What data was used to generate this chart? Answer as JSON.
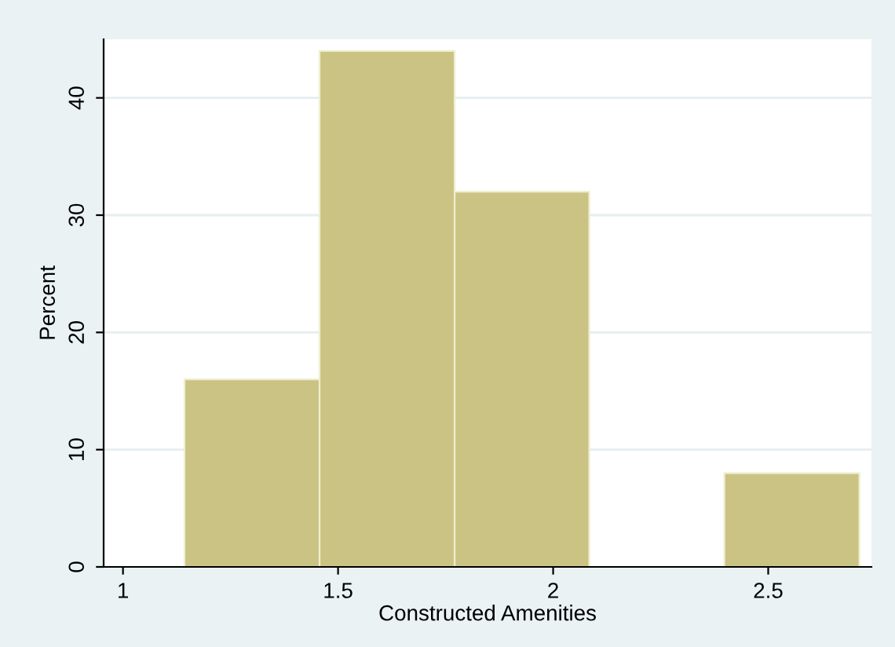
{
  "chart_data": {
    "type": "histogram",
    "xlabel": "Constructed Amenities",
    "ylabel": "Percent",
    "bins": [
      1.143,
      1.457,
      1.771,
      2.084,
      2.398,
      2.712
    ],
    "values": [
      16,
      44,
      32,
      0,
      8
    ],
    "color": "#cbc383",
    "xlim": [
      0.955,
      2.74
    ],
    "xticks": [
      {
        "value": 1,
        "label": "1"
      },
      1.5,
      {
        "value": 2,
        "label": "2"
      },
      2.5
    ],
    "ylim": [
      0,
      45
    ],
    "yticks": [
      0,
      10,
      20,
      30,
      40
    ],
    "grid": "y"
  }
}
